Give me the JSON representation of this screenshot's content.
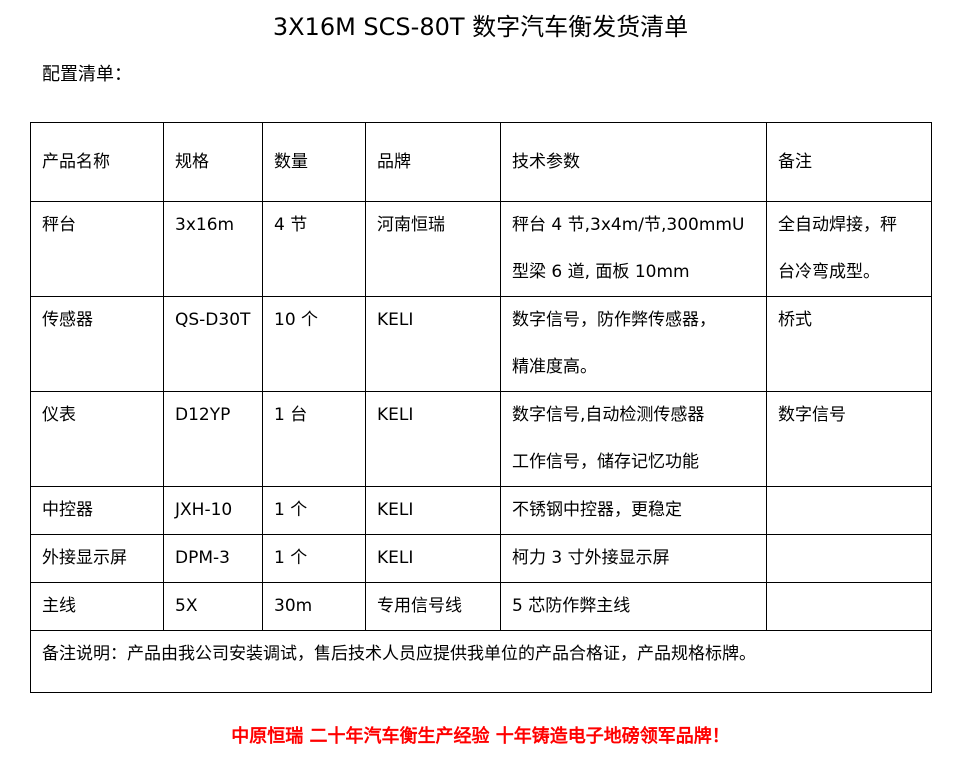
{
  "title": "3X16M SCS-80T 数字汽车衡发货清单",
  "subtitle": "配置清单：",
  "table": {
    "headers": [
      "产品名称",
      "规格",
      "数量",
      "品牌",
      "技术参数",
      "备注"
    ],
    "rows": [
      {
        "name": "秤台",
        "spec": "3x16m",
        "qty": "4 节",
        "brand": "河南恒瑞",
        "tech": [
          "秤台 4 节,3x4m/节,300mmU",
          "型梁 6 道, 面板 10mm"
        ],
        "note": [
          "全自动焊接，秤",
          "台冷弯成型。"
        ]
      },
      {
        "name": "传感器",
        "spec": "QS-D30T",
        "qty": "10 个",
        "brand": "KELI",
        "tech": [
          "数字信号，防作弊传感器，",
          "精准度高。"
        ],
        "note": [
          "桥式"
        ]
      },
      {
        "name": "仪表",
        "spec": "D12YP",
        "qty": "1 台",
        "brand": "KELI",
        "tech": [
          "数字信号,自动检测传感器",
          "工作信号，储存记忆功能"
        ],
        "note": [
          "数字信号"
        ]
      },
      {
        "name": "中控器",
        "spec": "JXH-10",
        "qty": "1 个",
        "brand": "KELI",
        "tech": [
          "不锈钢中控器，更稳定"
        ],
        "note": [
          ""
        ]
      },
      {
        "name": "外接显示屏",
        "spec": "DPM-3",
        "qty": "1 个",
        "brand": "KELI",
        "tech": [
          "柯力 3 寸外接显示屏"
        ],
        "note": [
          ""
        ]
      },
      {
        "name": "主线",
        "spec": "5X",
        "qty": "30m",
        "brand": "专用信号线",
        "tech": [
          "5 芯防作弊主线"
        ],
        "note": [
          ""
        ]
      }
    ],
    "remark": "备注说明：产品由我公司安装调试，售后技术人员应提供我单位的产品合格证，产品规格标牌。"
  },
  "slogan": "中原恒瑞 二十年汽车衡生产经验 十年铸造电子地磅领军品牌！",
  "colors": {
    "slogan": "#ff0000"
  }
}
